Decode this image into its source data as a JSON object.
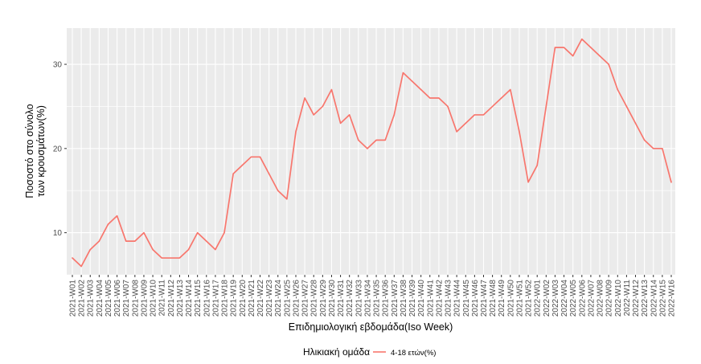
{
  "chart_data": {
    "type": "line",
    "xlabel": "Επιδημιολογική εβδομάδα(Iso Week)",
    "ylabel_lines": [
      "Ποσοστό στο σύνολο",
      "των κρουσμάτων(%)"
    ],
    "y_ticks": [
      10,
      20,
      30
    ],
    "ylim": [
      5,
      34.3
    ],
    "grid": true,
    "legend_placement": "bottom",
    "legend_title": "Ηλικιακή ομάδα",
    "x": [
      "2021-W01",
      "2021-W02",
      "2021-W03",
      "2021-W04",
      "2021-W05",
      "2021-W06",
      "2021-W07",
      "2021-W08",
      "2021-W09",
      "2021-W10",
      "2021-W11",
      "2021-W12",
      "2021-W13",
      "2021-W14",
      "2021-W15",
      "2021-W16",
      "2021-W17",
      "2021-W18",
      "2021-W19",
      "2021-W20",
      "2021-W21",
      "2021-W22",
      "2021-W23",
      "2021-W24",
      "2021-W25",
      "2021-W26",
      "2021-W27",
      "2021-W28",
      "2021-W29",
      "2021-W30",
      "2021-W31",
      "2021-W32",
      "2021-W33",
      "2021-W34",
      "2021-W35",
      "2021-W36",
      "2021-W37",
      "2021-W38",
      "2021-W39",
      "2021-W40",
      "2021-W41",
      "2021-W42",
      "2021-W43",
      "2021-W44",
      "2021-W45",
      "2021-W46",
      "2021-W47",
      "2021-W48",
      "2021-W49",
      "2021-W50",
      "2021-W51",
      "2021-W52",
      "2022-W01",
      "2022-W02",
      "2022-W03",
      "2022-W04",
      "2022-W05",
      "2022-W06",
      "2022-W07",
      "2022-W08",
      "2022-W09",
      "2022-W10",
      "2022-W11",
      "2022-W12",
      "2022-W13",
      "2022-W14",
      "2022-W15",
      "2022-W16"
    ],
    "series": [
      {
        "name": "4-18 ετών(%)",
        "color": "#F8766D",
        "values": [
          7,
          6,
          8,
          9,
          11,
          12,
          9,
          9,
          10,
          8,
          7,
          7,
          7,
          8,
          10,
          9,
          8,
          10,
          17,
          18,
          19,
          19,
          17,
          15,
          14,
          22,
          26,
          24,
          25,
          27,
          23,
          24,
          21,
          20,
          21,
          21,
          24,
          29,
          28,
          27,
          26,
          26,
          25,
          22,
          23,
          24,
          24,
          25,
          26,
          27,
          22,
          16,
          18,
          25,
          32,
          32,
          31,
          33,
          32,
          31,
          30,
          27,
          25,
          23,
          21,
          20,
          20,
          16
        ]
      }
    ]
  }
}
